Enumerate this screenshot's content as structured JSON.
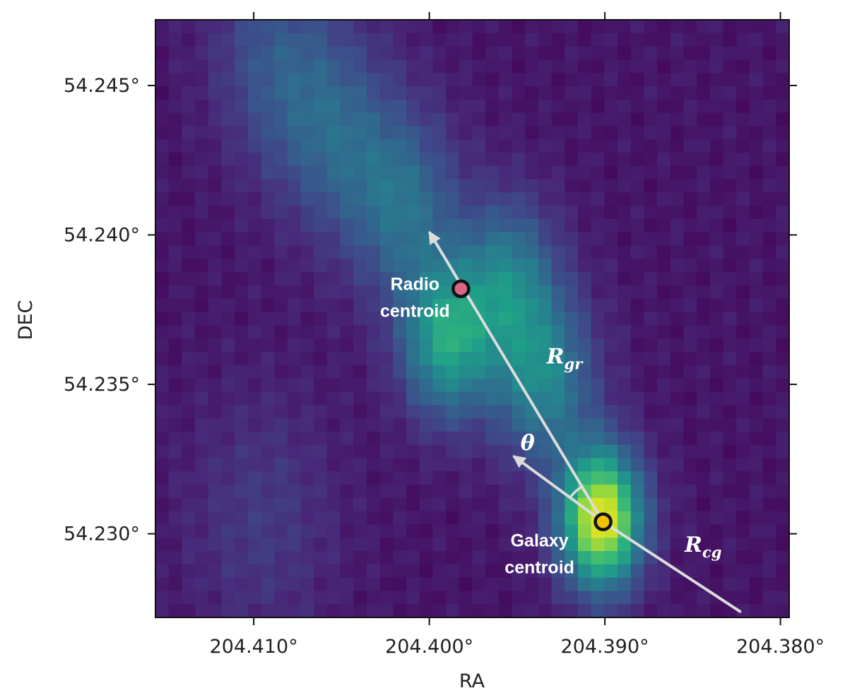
{
  "chart_data": {
    "type": "heatmap",
    "xlabel": "RA",
    "ylabel": "DEC",
    "x_ticks": [
      {
        "value": 204.41,
        "label": "204.410°"
      },
      {
        "value": 204.4,
        "label": "204.400°"
      },
      {
        "value": 204.39,
        "label": "204.390°"
      },
      {
        "value": 204.38,
        "label": "204.380°"
      }
    ],
    "y_ticks": [
      {
        "value": 54.245,
        "label": "54.245°"
      },
      {
        "value": 54.24,
        "label": "54.240°"
      },
      {
        "value": 54.235,
        "label": "54.235°"
      },
      {
        "value": 54.23,
        "label": "54.230°"
      }
    ],
    "xlim": [
      204.4156,
      204.3795
    ],
    "ylim": [
      54.2272,
      54.2472
    ],
    "colormap": "viridis",
    "grid": false,
    "emission_components": [
      {
        "ra": 204.3902,
        "dec": 54.2305,
        "peak": 1.0,
        "sigma_deg": 0.0016
      },
      {
        "ra": 204.399,
        "dec": 54.2365,
        "peak": 0.55,
        "sigma_deg": 0.0018
      },
      {
        "ra": 204.3935,
        "dec": 54.2352,
        "peak": 0.42,
        "sigma_deg": 0.002
      },
      {
        "ra": 204.3955,
        "dec": 54.2385,
        "peak": 0.38,
        "sigma_deg": 0.0019
      },
      {
        "ra": 204.4015,
        "dec": 54.241,
        "peak": 0.32,
        "sigma_deg": 0.0022
      },
      {
        "ra": 204.4055,
        "dec": 54.2435,
        "peak": 0.26,
        "sigma_deg": 0.0024
      },
      {
        "ra": 204.409,
        "dec": 54.246,
        "peak": 0.2,
        "sigma_deg": 0.0024
      },
      {
        "ra": 204.4095,
        "dec": 54.2305,
        "peak": 0.12,
        "sigma_deg": 0.003
      }
    ],
    "points": [
      {
        "name": "radio_centroid",
        "ra": 204.3982,
        "dec": 54.2382,
        "color": "#d9668a",
        "label_lines": [
          "Radio",
          "centroid"
        ]
      },
      {
        "name": "galaxy_centroid",
        "ra": 204.3901,
        "dec": 54.2304,
        "color": "#f2c200",
        "label_lines": [
          "Galaxy",
          "centroid"
        ]
      }
    ],
    "arrows": [
      {
        "name": "r-gr-arrow",
        "from": {
          "ra": 204.3901,
          "dec": 54.2304
        },
        "to": {
          "ra": 204.4,
          "dec": 54.2401
        }
      },
      {
        "name": "theta-arrow",
        "from": {
          "ra": 204.3901,
          "dec": 54.2304
        },
        "to": {
          "ra": 204.3952,
          "dec": 54.2326
        }
      }
    ],
    "lines": [
      {
        "name": "r-cg-line",
        "from": {
          "ra": 204.3901,
          "dec": 54.2304
        },
        "to": {
          "ra": 204.3823,
          "dec": 54.2274
        }
      }
    ],
    "annotations": [
      {
        "name": "r-gr-label",
        "main": "R",
        "sub": "gr",
        "ra": 204.3923,
        "dec": 54.2357
      },
      {
        "name": "theta-label",
        "main": "θ",
        "sub": "",
        "ra": 204.3944,
        "dec": 54.2328
      },
      {
        "name": "r-cg-label",
        "main": "R",
        "sub": "cg",
        "ra": 204.3844,
        "dec": 54.2294
      }
    ],
    "line_color": "#dcdcdc"
  }
}
